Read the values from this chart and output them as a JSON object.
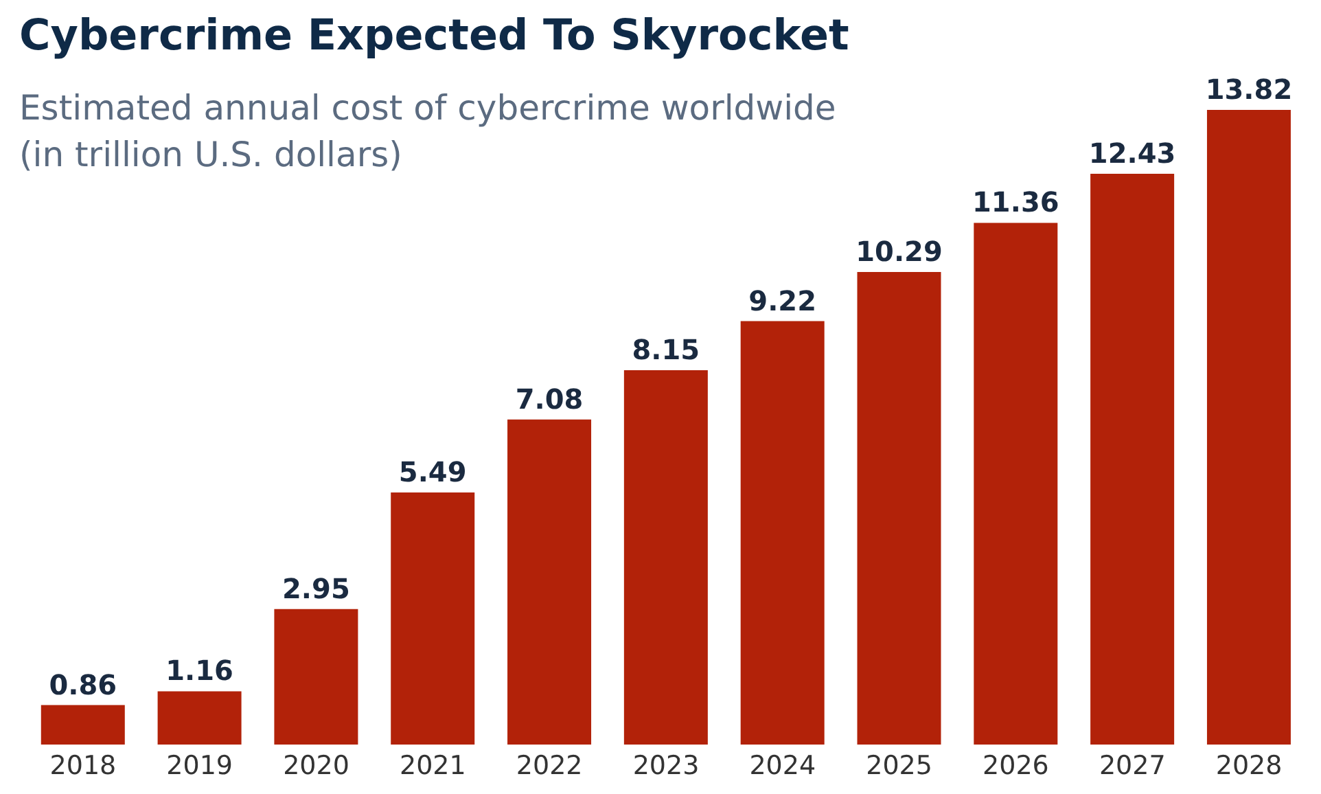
{
  "chart_data": {
    "type": "bar",
    "title": "Cybercrime Expected To Skyrocket",
    "subtitle": "Estimated annual cost of cybercrime worldwide\n(in trillion U.S. dollars)",
    "categories": [
      "2018",
      "2019",
      "2020",
      "2021",
      "2022",
      "2023",
      "2024",
      "2025",
      "2026",
      "2027",
      "2028"
    ],
    "values": [
      0.86,
      1.16,
      2.95,
      5.49,
      7.08,
      8.15,
      9.22,
      10.29,
      11.36,
      12.43,
      13.82
    ],
    "color": "#b22209",
    "data_labels": true,
    "tick_labels": "x"
  }
}
